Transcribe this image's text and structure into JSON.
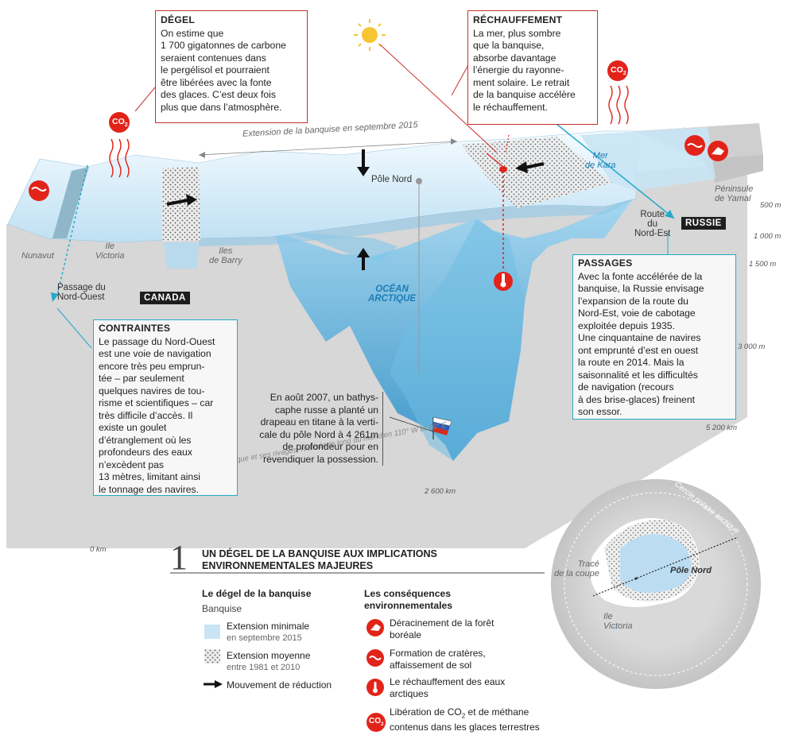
{
  "colors": {
    "red": "#e2231a",
    "cyan": "#24a9c9",
    "ice": "#c9e4f5",
    "ocean": "#5fb4dd",
    "dark": "#1e1e1e"
  },
  "degel": {
    "title": "DÉGEL",
    "text": "On estime que\n1 700 gigatonnes de carbone\nseraient contenues dans\nle pergélisol et pourraient\nêtre libérées avec la fonte\ndes glaces. C’est deux fois\nplus que dans l’atmosphère."
  },
  "rechauffement": {
    "title": "RÉCHAUFFEMENT",
    "text": "La mer, plus sombre\nque la banquise,\nabsorbe davantage\nl’énergie du rayonne-\nment solaire. Le retrait\nde la banquise accélère\nle réchauffement."
  },
  "contraintes": {
    "title": "CONTRAINTES",
    "text": "Le passage du Nord-Ouest\nest une voie de navigation\nencore très peu emprun-\ntée – par seulement\nquelques navires de tou-\nrisme et scientifiques – car\ntrès difficile d’accès. Il\nexiste un goulet\nd’étranglement où les\nprofondeurs des eaux\nn’excèdent pas\n13 mètres, limitant ainsi\nle tonnage des navires."
  },
  "passages": {
    "title": "PASSAGES",
    "text": "Avec la fonte accélérée de la\nbanquise, la Russie envisage\nl’expansion de la route du\nNord-Est, voie de cabotage\nexploitée depuis 1935.\nUne cinquantaine de navires\nont emprunté d’est en ouest\nla route en 2014. Mais la\nsaisonnalité et les difficultés\nde navigation (recours\nà des brise-glaces) freinent\nson essor."
  },
  "bathyscaphe_note": "En août 2007, un bathys-\ncaphe russe a planté un\ndrapeau en titane à la verti-\ncale du pôle Nord à 4 261m\nde profondeur pour en\nrevendiquer la possession.",
  "labels": {
    "extension": "Extension de la banquise en septembre 2015",
    "pole_nord": "Pôle Nord",
    "ocean": "OCÉAN\nARCTIQUE",
    "mer_kara": "Mer\nde Kara",
    "yamal": "Péninsule\nde Yamal",
    "route_nord_est": "Route\ndu\nNord-Est",
    "russie": "RUSSIE",
    "canada": "CANADA",
    "nunavut": "Nunavut",
    "ile_victoria": "Ile\nVictoria",
    "iles_barry": "Iles\nde Barry",
    "passage_nord_ouest": "Passage du\nNord-Ouest",
    "coupe": "Coupe topographique de l’océan Arctique et ses rivages, réalisée le long du méridien 110° W et 70° E",
    "km0": "0 km",
    "km2600": "2 600 km",
    "km5200": "5 200 km",
    "co2": "CO",
    "co2_sub": "2"
  },
  "depths": [
    "500 m",
    "1 000 m",
    "1 500 m",
    "3 000 m"
  ],
  "title": {
    "number": "1",
    "text": "UN DÉGEL DE LA BANQUISE AUX IMPLICATIONS\nENVIRONNEMENTALES MAJEURES"
  },
  "legend_left": {
    "heading": "Le dégel de la banquise",
    "sub": "Banquise",
    "items": [
      {
        "label": "Extension minimale",
        "sub": "en septembre 2015"
      },
      {
        "label": "Extension moyenne",
        "sub": "entre 1981 et 2010"
      },
      {
        "label": "Mouvement de réduction"
      }
    ]
  },
  "legend_right": {
    "heading": "Les conséquences\nenvironnementales",
    "items": [
      {
        "label": "Déracinement de la forêt\nboréale",
        "icon": "tree-icon"
      },
      {
        "label": "Formation de cratères,\naffaissement  de sol",
        "icon": "crater-icon"
      },
      {
        "label": "Le réchauffement des eaux\narctiques",
        "icon": "thermometer-icon"
      },
      {
        "label_a": "Libération de CO",
        "label_sub": "2",
        "label_b": " et de méthane\ncontenus dans les glaces terrestres",
        "icon": "co2-icon"
      }
    ]
  },
  "map": {
    "cercle": "Cercle polaire arctique",
    "pole": "Pôle Nord",
    "trace": "Tracé\nde la coupe",
    "ile": "Ile\nVictoria"
  }
}
